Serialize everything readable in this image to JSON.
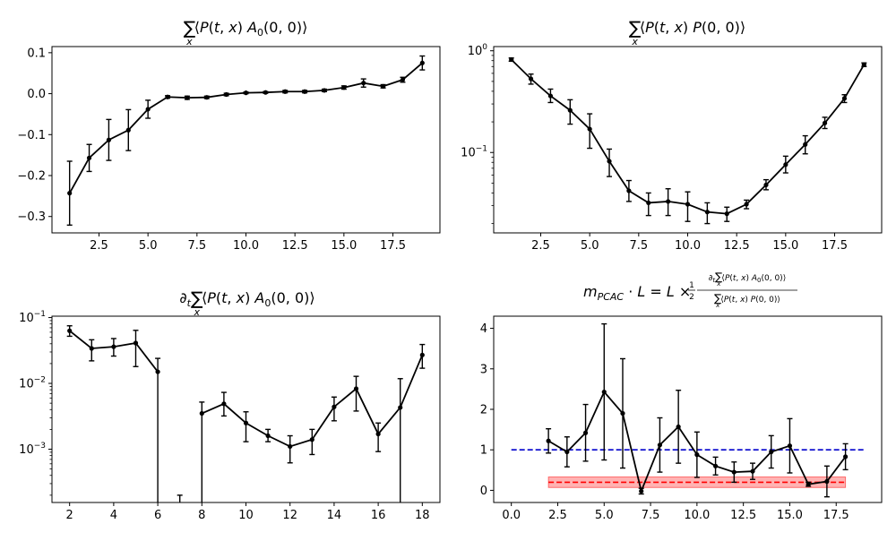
{
  "chart_data": [
    {
      "type": "line",
      "title": "∑ₓ⟨P(t,x) A₀(0,0)⟩",
      "xlabel": "",
      "ylabel": "",
      "yscale": "linear",
      "xlim": [
        0.1,
        19.9
      ],
      "ylim": [
        -0.34,
        0.115
      ],
      "xticks": [
        2.5,
        5.0,
        7.5,
        10.0,
        12.5,
        15.0,
        17.5
      ],
      "xtick_labels": [
        "2.5",
        "5.0",
        "7.5",
        "10.0",
        "12.5",
        "15.0",
        "17.5"
      ],
      "yticks": [
        -0.3,
        -0.2,
        -0.1,
        0.0,
        0.1
      ],
      "ytick_labels": [
        "−0.3",
        "−0.2",
        "−0.1",
        "0.0",
        "0.1"
      ],
      "grid": false,
      "series": [
        {
          "x": [
            1,
            2,
            3,
            4,
            5,
            6,
            7,
            8,
            9,
            10,
            11,
            12,
            13,
            14,
            15,
            16,
            17,
            18,
            19
          ],
          "y": [
            -0.243,
            -0.157,
            -0.113,
            -0.089,
            -0.038,
            -0.008,
            -0.01,
            -0.009,
            -0.002,
            0.002,
            0.003,
            0.005,
            0.005,
            0.008,
            0.015,
            0.026,
            0.018,
            0.034,
            0.075
          ],
          "yerr": [
            0.078,
            0.033,
            0.05,
            0.05,
            0.022,
            0.003,
            0.004,
            0.003,
            0.003,
            0.002,
            0.002,
            0.003,
            0.003,
            0.003,
            0.004,
            0.01,
            0.004,
            0.006,
            0.017
          ]
        }
      ]
    },
    {
      "type": "line",
      "title": "∑ₓ⟨P(t,x) P(0,0)⟩",
      "xlabel": "",
      "ylabel": "",
      "yscale": "log",
      "xlim": [
        0.1,
        19.9
      ],
      "ylim": [
        0.0162,
        1.1
      ],
      "xticks": [
        2.5,
        5.0,
        7.5,
        10.0,
        12.5,
        15.0,
        17.5
      ],
      "xtick_labels": [
        "2.5",
        "5.0",
        "7.5",
        "10.0",
        "12.5",
        "15.0",
        "17.5"
      ],
      "yticks": [
        0.1,
        1.0
      ],
      "ytick_labels": [
        "10⁻¹",
        "10⁰"
      ],
      "grid": false,
      "series": [
        {
          "x": [
            1,
            2,
            3,
            4,
            5,
            6,
            7,
            8,
            9,
            10,
            11,
            12,
            13,
            14,
            15,
            16,
            17,
            18,
            19
          ],
          "y": [
            0.82,
            0.53,
            0.36,
            0.26,
            0.17,
            0.082,
            0.042,
            0.032,
            0.033,
            0.031,
            0.026,
            0.025,
            0.031,
            0.048,
            0.076,
            0.12,
            0.195,
            0.34,
            0.73
          ],
          "y_low": [
            0.79,
            0.47,
            0.31,
            0.19,
            0.11,
            0.058,
            0.033,
            0.024,
            0.024,
            0.021,
            0.02,
            0.021,
            0.028,
            0.043,
            0.063,
            0.097,
            0.172,
            0.31,
            0.7
          ],
          "y_high": [
            0.85,
            0.59,
            0.42,
            0.33,
            0.24,
            0.108,
            0.053,
            0.04,
            0.044,
            0.041,
            0.032,
            0.029,
            0.034,
            0.054,
            0.092,
            0.146,
            0.222,
            0.37,
            0.76
          ]
        }
      ]
    },
    {
      "type": "line",
      "title": "∂ₜ∑ₓ⟨P(t,x) A₀(0,0)⟩",
      "xlabel": "",
      "ylabel": "",
      "yscale": "log",
      "xlim": [
        1.2,
        18.8
      ],
      "ylim": [
        0.000155,
        0.105
      ],
      "xticks": [
        2,
        4,
        6,
        8,
        10,
        12,
        14,
        16,
        18
      ],
      "xtick_labels": [
        "2",
        "4",
        "6",
        "8",
        "10",
        "12",
        "14",
        "16",
        "18"
      ],
      "yticks": [
        0.001,
        0.01,
        0.1
      ],
      "ytick_labels": [
        "10⁻³",
        "10⁻²",
        "10⁻¹"
      ],
      "grid": false,
      "series": [
        {
          "x": [
            2,
            3,
            4,
            5,
            6,
            7,
            8,
            9,
            10,
            11,
            12,
            13,
            14,
            15,
            16,
            17,
            18
          ],
          "y": [
            0.063,
            0.034,
            0.036,
            0.041,
            0.015,
            null,
            0.0035,
            0.0049,
            0.0025,
            0.0016,
            0.0011,
            0.0014,
            0.0044,
            0.0083,
            0.0017,
            0.0043,
            0.027
          ],
          "y_low": [
            0.052,
            0.022,
            0.026,
            0.018,
            1e-07,
            null,
            1e-07,
            0.0032,
            0.0013,
            0.0013,
            0.00062,
            0.00083,
            0.0027,
            0.0038,
            0.00092,
            1e-07,
            0.017
          ],
          "y_high": [
            0.075,
            0.046,
            0.048,
            0.064,
            0.024,
            0.0002,
            0.0052,
            0.0073,
            0.0037,
            0.002,
            0.0016,
            0.002,
            0.0062,
            0.0128,
            0.0025,
            0.0118,
            0.039
          ]
        }
      ]
    },
    {
      "type": "line",
      "title": "m_PCAC · L = L × ½ (∂ₜ∑ₓ⟨P(t,x) A₀(0,0)⟩) / (∑ₓ⟨P(t,x) P(0,0)⟩)",
      "xlabel": "",
      "ylabel": "",
      "yscale": "linear",
      "xlim": [
        -0.95,
        19.95
      ],
      "ylim": [
        -0.3,
        4.3
      ],
      "xticks": [
        0.0,
        2.5,
        5.0,
        7.5,
        10.0,
        12.5,
        15.0,
        17.5
      ],
      "xtick_labels": [
        "0.0",
        "2.5",
        "5.0",
        "7.5",
        "10.0",
        "12.5",
        "15.0",
        "17.5"
      ],
      "yticks": [
        0,
        1,
        2,
        3,
        4
      ],
      "ytick_labels": [
        "0",
        "1",
        "2",
        "3",
        "4"
      ],
      "grid": false,
      "reference_lines": [
        {
          "y": 1.0,
          "color": "#0000cc",
          "style": "dashed",
          "x_range": [
            0,
            19
          ]
        },
        {
          "y": 0.2,
          "color": "#ff0000",
          "style": "dashed",
          "x_range": [
            2,
            18
          ],
          "band": [
            0.07,
            0.33
          ],
          "band_color": "#ff9999"
        }
      ],
      "series": [
        {
          "x": [
            2,
            3,
            4,
            5,
            6,
            7,
            8,
            9,
            10,
            11,
            12,
            13,
            14,
            15,
            16,
            17,
            18
          ],
          "y": [
            1.22,
            0.95,
            1.42,
            2.43,
            1.9,
            -0.02,
            1.12,
            1.57,
            0.88,
            0.6,
            0.45,
            0.47,
            0.95,
            1.1,
            0.15,
            0.22,
            0.83
          ],
          "yerr": [
            0.3,
            0.37,
            0.7,
            1.68,
            1.35,
            0.07,
            0.67,
            0.9,
            0.56,
            0.22,
            0.25,
            0.2,
            0.4,
            0.67,
            0.05,
            0.38,
            0.32
          ]
        }
      ]
    }
  ]
}
